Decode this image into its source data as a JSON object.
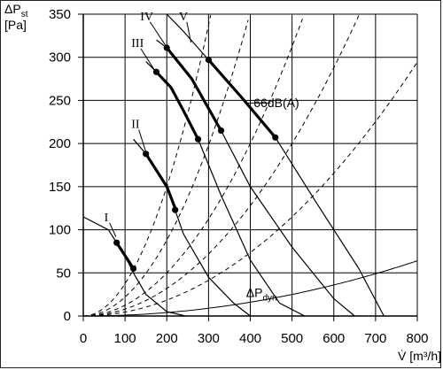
{
  "chart_data": {
    "type": "line",
    "title": "",
    "y_title": {
      "main": "ΔP",
      "sub": "st",
      "unit": "[Pa]"
    },
    "x_title": "V̇ [m³/h]",
    "xlim": [
      0,
      800
    ],
    "ylim": [
      0,
      350
    ],
    "x_ticks": [
      "0",
      "100",
      "200",
      "300",
      "400",
      "500",
      "600",
      "700",
      "800"
    ],
    "y_ticks": [
      "0",
      "50",
      "100",
      "150",
      "200",
      "250",
      "300",
      "350"
    ],
    "grid": true,
    "fan_curves": [
      {
        "name": "I",
        "points": [
          [
            0,
            115
          ],
          [
            60,
            100
          ],
          [
            100,
            70
          ],
          [
            120,
            50
          ],
          [
            150,
            25
          ],
          [
            200,
            5
          ],
          [
            245,
            0
          ]
        ],
        "bold": [
          [
            80,
            85
          ],
          [
            100,
            70
          ],
          [
            120,
            55
          ]
        ],
        "dots": [
          [
            80,
            85
          ],
          [
            120,
            55
          ]
        ]
      },
      {
        "name": "II",
        "points": [
          [
            120,
            205
          ],
          [
            150,
            188
          ],
          [
            200,
            150
          ],
          [
            240,
            95
          ],
          [
            300,
            45
          ],
          [
            360,
            15
          ],
          [
            400,
            0
          ]
        ],
        "bold": [
          [
            150,
            188
          ],
          [
            200,
            150
          ],
          [
            220,
            125
          ]
        ],
        "dots": [
          [
            150,
            188
          ],
          [
            220,
            123
          ]
        ]
      },
      {
        "name": "III",
        "points": [
          [
            150,
            295
          ],
          [
            175,
            283
          ],
          [
            210,
            265
          ],
          [
            240,
            238
          ],
          [
            275,
            205
          ],
          [
            330,
            140
          ],
          [
            400,
            65
          ],
          [
            470,
            15
          ],
          [
            530,
            0
          ]
        ],
        "bold": [
          [
            175,
            283
          ],
          [
            210,
            265
          ],
          [
            240,
            238
          ],
          [
            275,
            205
          ]
        ],
        "dots": [
          [
            175,
            283
          ],
          [
            275,
            205
          ]
        ]
      },
      {
        "name": "IV",
        "points": [
          [
            175,
            320
          ],
          [
            200,
            311
          ],
          [
            260,
            275
          ],
          [
            330,
            215
          ],
          [
            400,
            150
          ],
          [
            500,
            80
          ],
          [
            600,
            20
          ],
          [
            650,
            0
          ]
        ],
        "bold": [
          [
            200,
            311
          ],
          [
            260,
            275
          ],
          [
            330,
            215
          ]
        ],
        "dots": [
          [
            200,
            311
          ],
          [
            330,
            215
          ]
        ]
      },
      {
        "name": "V",
        "points": [
          [
            200,
            350
          ],
          [
            240,
            330
          ],
          [
            300,
            297
          ],
          [
            380,
            253
          ],
          [
            460,
            207
          ],
          [
            560,
            130
          ],
          [
            660,
            55
          ],
          [
            720,
            0
          ]
        ],
        "bold": [
          [
            300,
            297
          ],
          [
            380,
            253
          ],
          [
            460,
            207
          ]
        ],
        "dots": [
          [
            300,
            297
          ],
          [
            460,
            207
          ]
        ]
      }
    ],
    "system_curves": [
      {
        "k": 0.00375
      },
      {
        "k": 0.0022
      },
      {
        "k": 0.00125
      },
      {
        "k": 0.0008
      },
      {
        "k": 0.00046
      }
    ],
    "dynamic_pressure": {
      "label": "ΔP",
      "label_sub": "dyn",
      "k": 0.0001
    },
    "annotations": [
      {
        "text": "66dB(A)"
      }
    ],
    "curve_labels": [
      "I",
      "II",
      "III",
      "IV",
      "V"
    ]
  }
}
